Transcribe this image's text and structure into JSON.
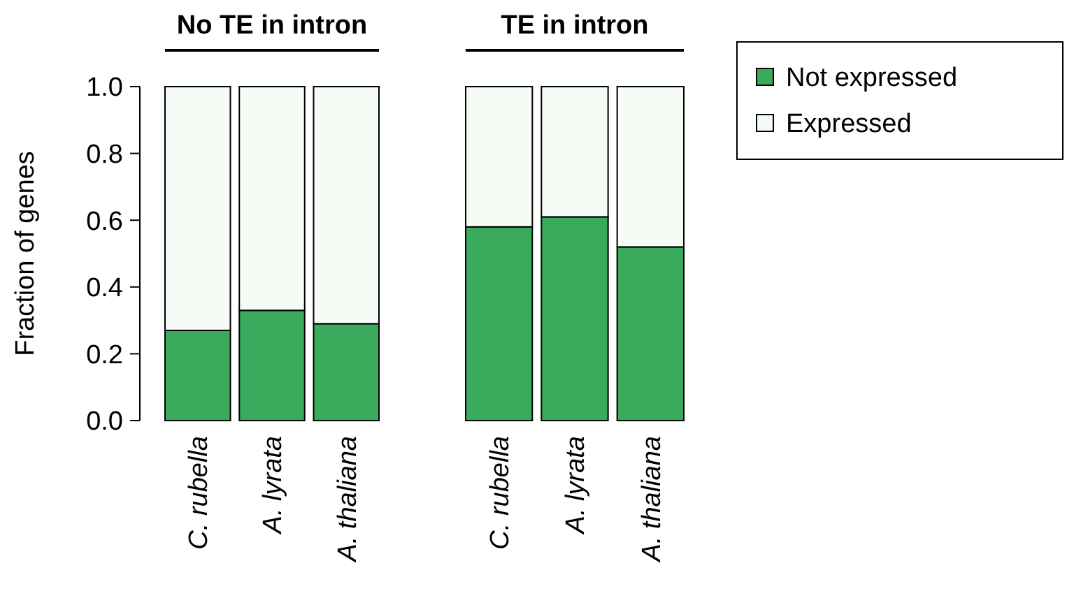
{
  "chart_data": [
    {
      "type": "bar",
      "title": "No TE in intron",
      "ylabel": "Fraction of genes",
      "categories": [
        "C. rubella",
        "A. lyrata",
        "A. thaliana"
      ],
      "stacked": true,
      "ylim": [
        0,
        1
      ],
      "yticks": [
        {
          "value": 0,
          "label": "0.0"
        },
        {
          "value": 0.2,
          "label": "0.2"
        },
        {
          "value": 0.4,
          "label": "0.4"
        },
        {
          "value": 0.6,
          "label": "0.6"
        },
        {
          "value": 0.8,
          "label": "0.8"
        },
        {
          "value": 1,
          "label": "1.0"
        }
      ],
      "legend": false,
      "series": [
        {
          "color": "#3aaa5c",
          "values": [
            0.27,
            0.33,
            0.29
          ]
        },
        {
          "color": "#f5fbf5",
          "values": [
            0.73,
            0.67,
            0.71
          ]
        }
      ]
    },
    {
      "type": "bar",
      "title": "TE in intron",
      "categories": [
        "C. rubella",
        "A. lyrata",
        "A. thaliana"
      ],
      "stacked": true,
      "ylim": [
        0,
        1
      ],
      "tick_labels": "x",
      "legend": "right",
      "series": [
        {
          "name": "Not expressed",
          "color": "#3aaa5c",
          "values": [
            0.58,
            0.61,
            0.52
          ]
        },
        {
          "name": "Expressed",
          "color": "#f5fbf5",
          "values": [
            0.42,
            0.39,
            0.48
          ]
        }
      ]
    }
  ]
}
